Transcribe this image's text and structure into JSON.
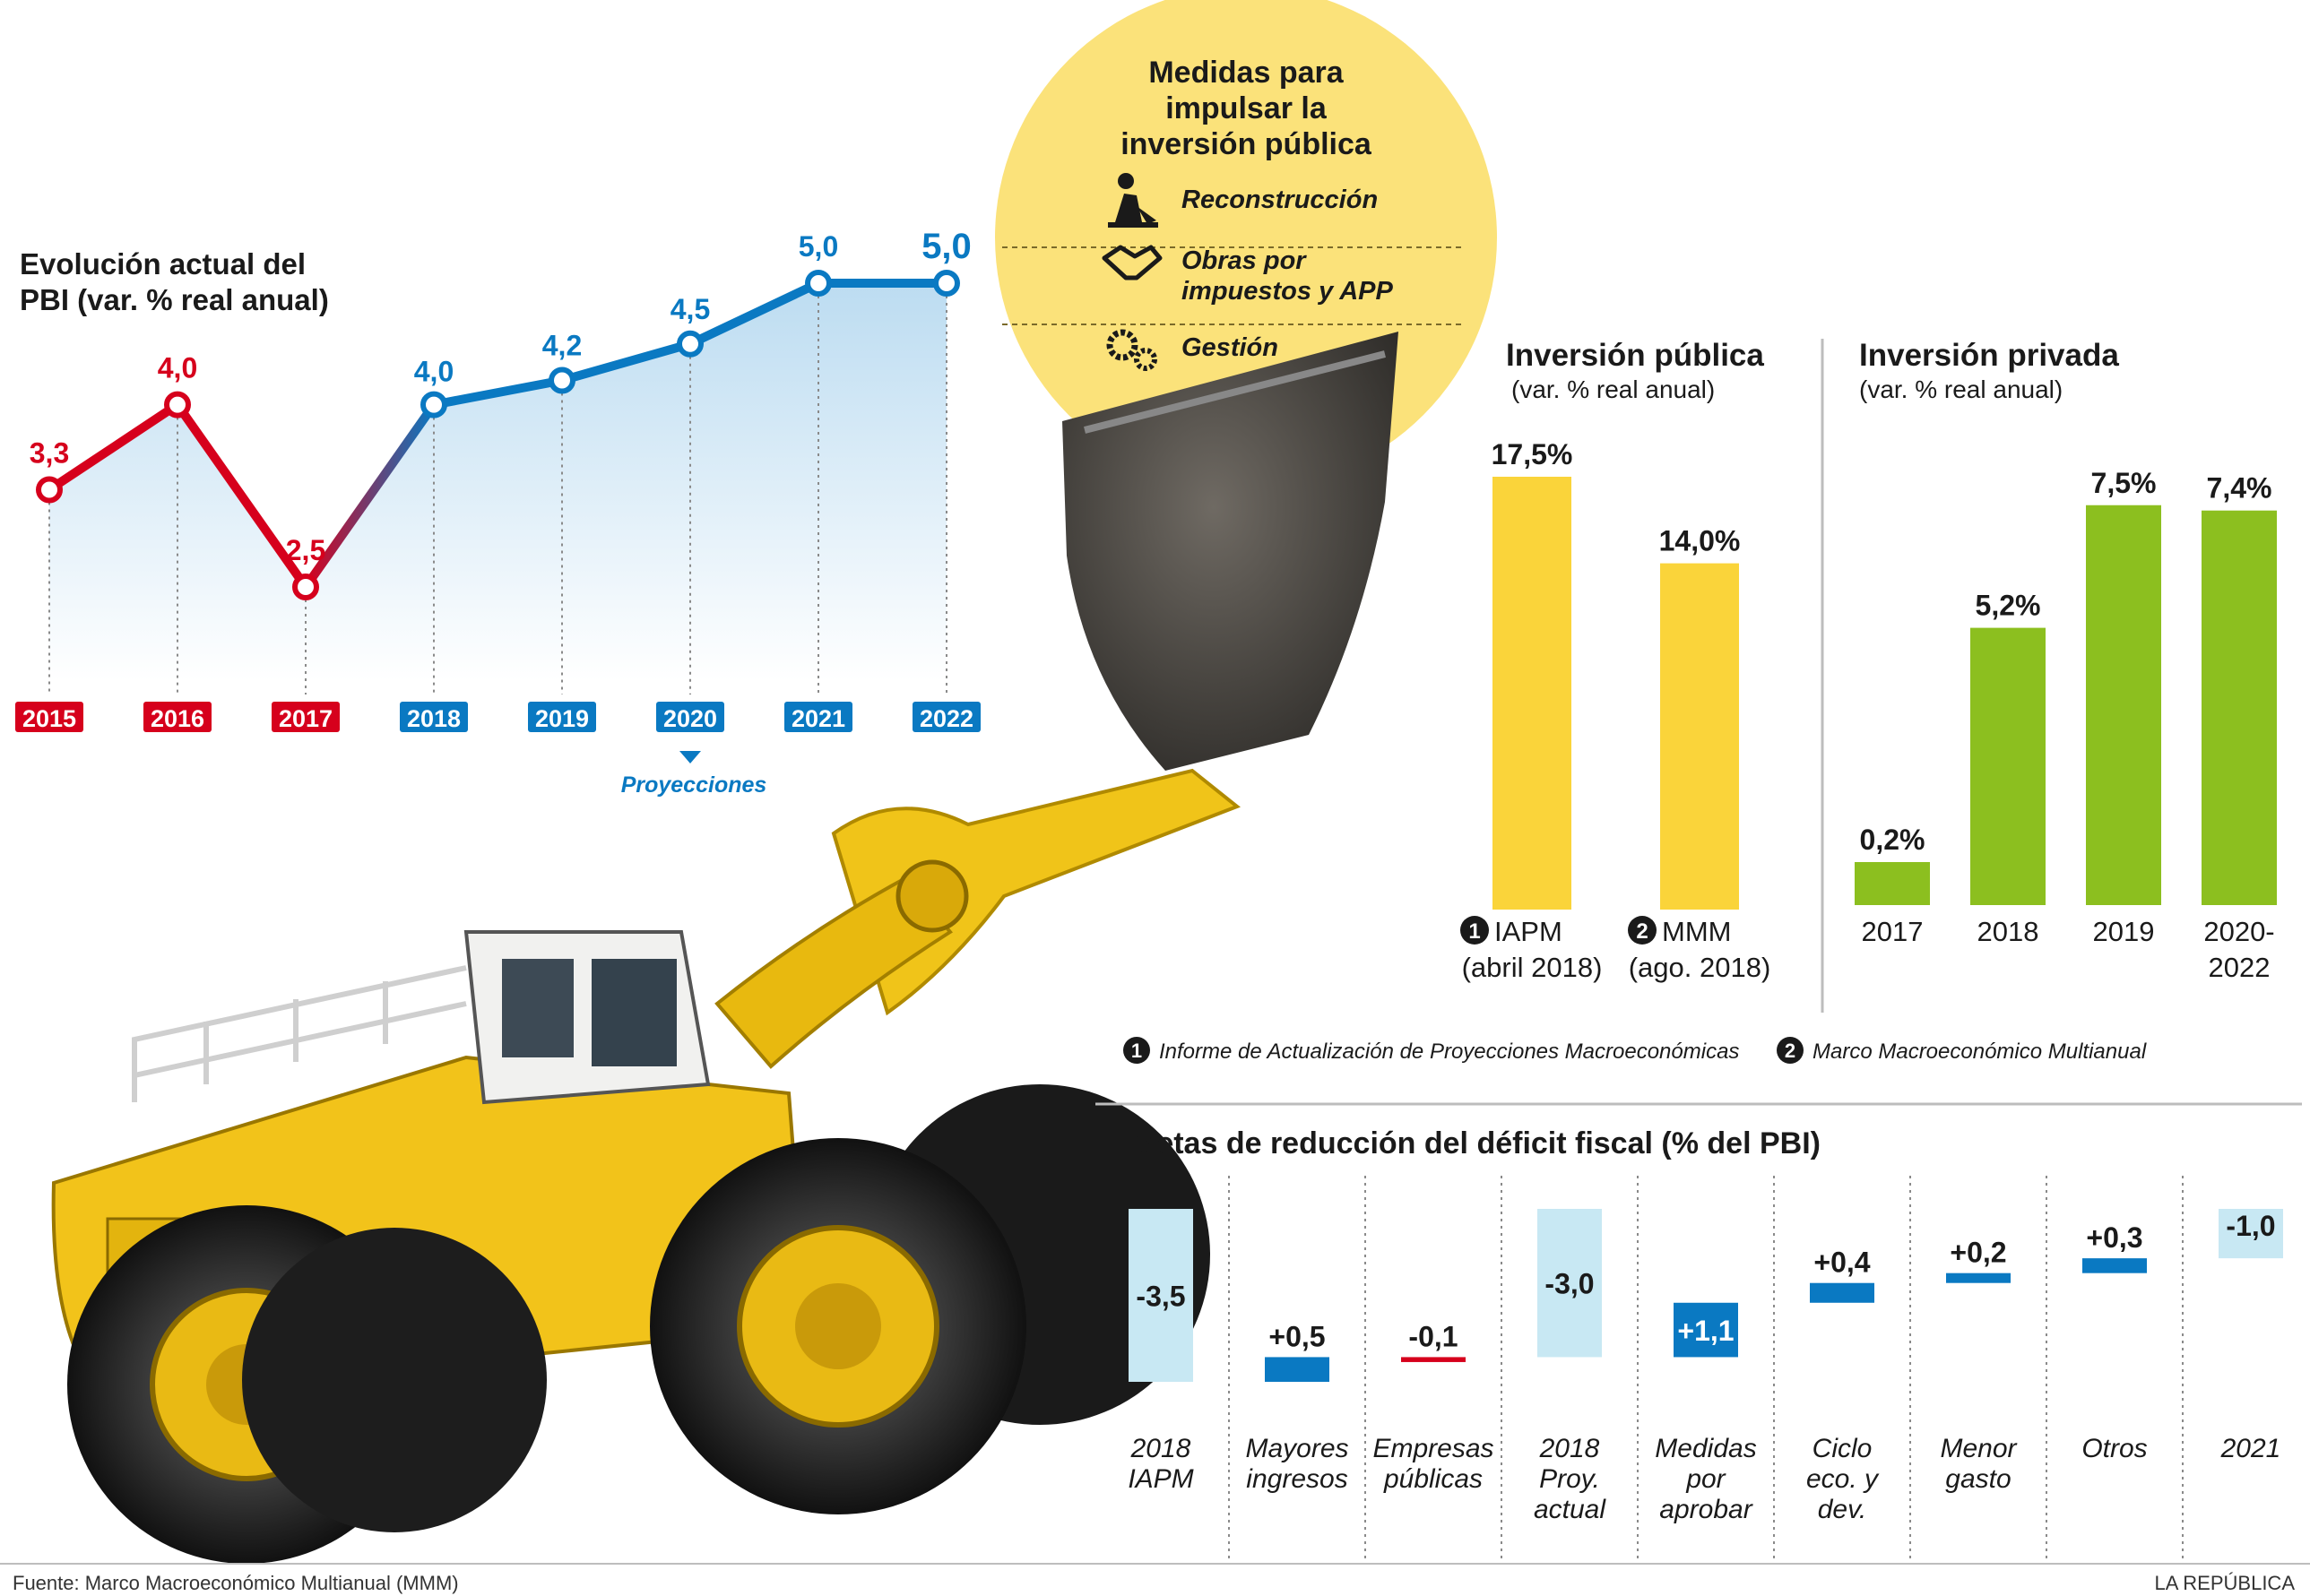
{
  "colors": {
    "red": "#d6001c",
    "blue": "#0a79c2",
    "light_blue": "#c8e8f3",
    "yellow": "#fad43a",
    "yellow_circle": "#fbe27a",
    "green": "#8cbf1f",
    "dark": "#1a1a1a"
  },
  "measures": {
    "title": "Medidas para impulsar la inversión pública",
    "title_lines": [
      "Medidas para",
      "impulsar la",
      "inversión pública"
    ],
    "items": [
      {
        "icon": "worker-shovel-icon",
        "lines": [
          "Reconstrucción"
        ]
      },
      {
        "icon": "handshake-icon",
        "lines": [
          "Obras por",
          "impuestos y APP"
        ]
      },
      {
        "icon": "gears-icon",
        "lines": [
          "Gestión"
        ]
      }
    ]
  },
  "chart_data": [
    {
      "id": "pbi",
      "type": "line",
      "title_lines": [
        "Evolución actual del",
        "PBI (var. % real anual)"
      ],
      "x": [
        "2015",
        "2016",
        "2017",
        "2018",
        "2019",
        "2020",
        "2021",
        "2022"
      ],
      "values": [
        3.3,
        4.0,
        2.5,
        4.0,
        4.2,
        4.5,
        5.0,
        5.0
      ],
      "labels": [
        "3,3",
        "4,0",
        "2,5",
        "4,0",
        "4,2",
        "4,5",
        "5,0",
        "5,0"
      ],
      "series_colors": [
        "red",
        "red",
        "red",
        "blue",
        "blue",
        "blue",
        "blue",
        "blue"
      ],
      "projection_label": "Proyecciones"
    },
    {
      "id": "inv-publica",
      "type": "bar",
      "title": "Inversión pública",
      "subtitle": "(var. % real anual)",
      "categories": [
        {
          "num": "1",
          "lines": [
            "IAPM",
            "(abril 2018)"
          ]
        },
        {
          "num": "2",
          "lines": [
            "MMM",
            "(ago. 2018)"
          ]
        }
      ],
      "values": [
        17.5,
        14.0
      ],
      "labels": [
        "17,5%",
        "14,0%"
      ]
    },
    {
      "id": "inv-privada",
      "type": "bar",
      "title": "Inversión privada",
      "subtitle": "(var. % real anual)",
      "categories": [
        {
          "lines": [
            "2017"
          ]
        },
        {
          "lines": [
            "2018"
          ]
        },
        {
          "lines": [
            "2019"
          ]
        },
        {
          "lines": [
            "2020-",
            "2022"
          ]
        }
      ],
      "values": [
        0.2,
        5.2,
        7.5,
        7.4
      ],
      "labels": [
        "0,2%",
        "5,2%",
        "7,5%",
        "7,4%"
      ]
    },
    {
      "id": "deficit",
      "type": "bar",
      "subtype": "waterfall",
      "title": "Metas de reducción del déficit fiscal (% del PBI)",
      "steps": [
        {
          "lines": [
            "2018",
            "IAPM"
          ],
          "value": -3.5,
          "label": "-3,5",
          "kind": "total"
        },
        {
          "lines": [
            "Mayores",
            "ingresos"
          ],
          "value": 0.5,
          "label": "+0,5",
          "kind": "up"
        },
        {
          "lines": [
            "Empresas",
            "públicas"
          ],
          "value": -0.1,
          "label": "-0,1",
          "kind": "down"
        },
        {
          "lines": [
            "2018",
            "Proy.",
            "actual"
          ],
          "value": -3.0,
          "label": "-3,0",
          "kind": "total"
        },
        {
          "lines": [
            "Medidas",
            "por",
            "aprobar"
          ],
          "value": 1.1,
          "label": "+1,1",
          "kind": "up"
        },
        {
          "lines": [
            "Ciclo",
            "eco. y",
            "dev."
          ],
          "value": 0.4,
          "label": "+0,4",
          "kind": "up"
        },
        {
          "lines": [
            "Menor",
            "gasto"
          ],
          "value": 0.2,
          "label": "+0,2",
          "kind": "up"
        },
        {
          "lines": [
            "Otros"
          ],
          "value": 0.3,
          "label": "+0,3",
          "kind": "up"
        },
        {
          "lines": [
            "2021"
          ],
          "value": -1.0,
          "label": "-1,0",
          "kind": "total"
        }
      ]
    }
  ],
  "legend": [
    {
      "num": "1",
      "text": "Informe de Actualización de Proyecciones Macroeconómicas"
    },
    {
      "num": "2",
      "text": "Marco Macroeconómico Multianual"
    }
  ],
  "footer": {
    "source": "Fuente: Marco Macroeconómico Multianual (MMM)",
    "brand": "LA REPÚBLICA"
  }
}
